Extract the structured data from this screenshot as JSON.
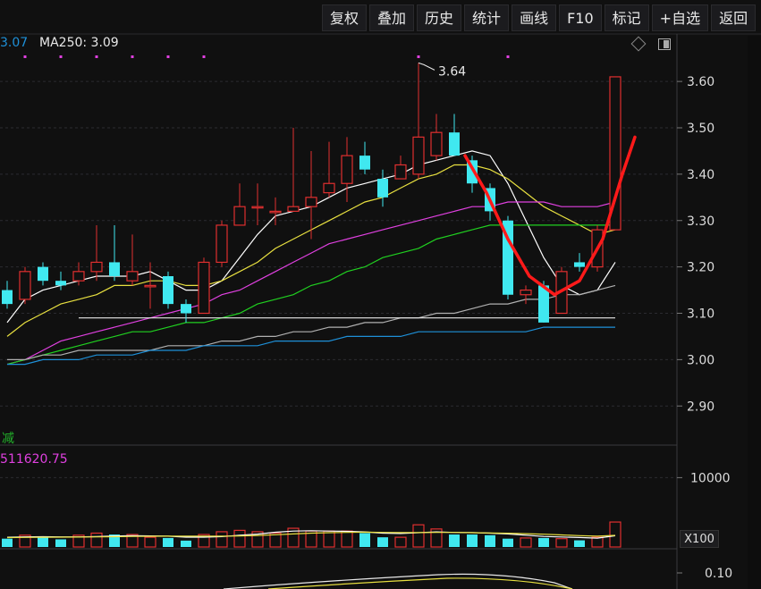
{
  "toolbar": {
    "items": [
      "复权",
      "叠加",
      "历史",
      "统计",
      "画线",
      "F10",
      "标记",
      "+自选",
      "返回"
    ]
  },
  "indicators": {
    "ma_prev_value": "3.07",
    "ma250_label": "MA250: 3.09"
  },
  "volume_panel": {
    "title": "减",
    "value": "511620.75",
    "multiplier": "X100"
  },
  "colors": {
    "up": "#e03030",
    "down": "#40e8f0",
    "ma5": "#ffffff",
    "ma10": "#e8e040",
    "ma20": "#e040e0",
    "ma30": "#20d020",
    "ma60": "#b0b0b0",
    "ma250": "#1e90d8",
    "annotation": "#ff1a1a"
  },
  "chart_data": [
    {
      "type": "candlestick",
      "y_ticks": [
        "3.60",
        "3.50",
        "3.40",
        "3.30",
        "3.20",
        "3.10",
        "3.00",
        "2.90"
      ],
      "ylim": [
        2.86,
        3.66
      ],
      "grid": true,
      "high_annotation": "3.64",
      "candles": [
        {
          "o": 3.15,
          "h": 3.17,
          "l": 3.11,
          "c": 3.12
        },
        {
          "o": 3.13,
          "h": 3.2,
          "l": 3.12,
          "c": 3.19
        },
        {
          "o": 3.2,
          "h": 3.21,
          "l": 3.16,
          "c": 3.17
        },
        {
          "o": 3.17,
          "h": 3.19,
          "l": 3.15,
          "c": 3.16
        },
        {
          "o": 3.17,
          "h": 3.21,
          "l": 3.16,
          "c": 3.19
        },
        {
          "o": 3.19,
          "h": 3.29,
          "l": 3.17,
          "c": 3.21
        },
        {
          "o": 3.21,
          "h": 3.29,
          "l": 3.17,
          "c": 3.18
        },
        {
          "o": 3.17,
          "h": 3.27,
          "l": 3.16,
          "c": 3.19
        },
        {
          "o": 3.16,
          "h": 3.21,
          "l": 3.11,
          "c": 3.16
        },
        {
          "o": 3.18,
          "h": 3.19,
          "l": 3.11,
          "c": 3.12
        },
        {
          "o": 3.12,
          "h": 3.13,
          "l": 3.08,
          "c": 3.1
        },
        {
          "o": 3.1,
          "h": 3.22,
          "l": 3.1,
          "c": 3.21
        },
        {
          "o": 3.21,
          "h": 3.3,
          "l": 3.2,
          "c": 3.29
        },
        {
          "o": 3.29,
          "h": 3.38,
          "l": 3.29,
          "c": 3.33
        },
        {
          "o": 3.33,
          "h": 3.38,
          "l": 3.29,
          "c": 3.33
        },
        {
          "o": 3.32,
          "h": 3.35,
          "l": 3.29,
          "c": 3.32
        },
        {
          "o": 3.32,
          "h": 3.5,
          "l": 3.32,
          "c": 3.33
        },
        {
          "o": 3.33,
          "h": 3.45,
          "l": 3.26,
          "c": 3.35
        },
        {
          "o": 3.36,
          "h": 3.47,
          "l": 3.35,
          "c": 3.38
        },
        {
          "o": 3.38,
          "h": 3.48,
          "l": 3.34,
          "c": 3.44
        },
        {
          "o": 3.44,
          "h": 3.47,
          "l": 3.4,
          "c": 3.41
        },
        {
          "o": 3.39,
          "h": 3.41,
          "l": 3.33,
          "c": 3.35
        },
        {
          "o": 3.39,
          "h": 3.44,
          "l": 3.39,
          "c": 3.42
        },
        {
          "o": 3.4,
          "h": 3.64,
          "l": 3.39,
          "c": 3.48
        },
        {
          "o": 3.44,
          "h": 3.53,
          "l": 3.43,
          "c": 3.49
        },
        {
          "o": 3.49,
          "h": 3.53,
          "l": 3.44,
          "c": 3.44
        },
        {
          "o": 3.43,
          "h": 3.44,
          "l": 3.36,
          "c": 3.38
        },
        {
          "o": 3.37,
          "h": 3.38,
          "l": 3.3,
          "c": 3.32
        },
        {
          "o": 3.3,
          "h": 3.31,
          "l": 3.13,
          "c": 3.14
        },
        {
          "o": 3.14,
          "h": 3.16,
          "l": 3.12,
          "c": 3.15
        },
        {
          "o": 3.16,
          "h": 3.17,
          "l": 3.08,
          "c": 3.08
        },
        {
          "o": 3.1,
          "h": 3.2,
          "l": 3.1,
          "c": 3.19
        },
        {
          "o": 3.21,
          "h": 3.23,
          "l": 3.19,
          "c": 3.2
        },
        {
          "o": 3.2,
          "h": 3.29,
          "l": 3.19,
          "c": 3.28
        },
        {
          "o": 3.28,
          "h": 3.61,
          "l": 3.28,
          "c": 3.61
        }
      ],
      "moving_averages": [
        {
          "key": "ma5",
          "values": [
            3.08,
            3.13,
            3.15,
            3.16,
            3.17,
            3.18,
            3.18,
            3.18,
            3.19,
            3.17,
            3.15,
            3.15,
            3.17,
            3.22,
            3.27,
            3.31,
            3.32,
            3.33,
            3.35,
            3.37,
            3.38,
            3.39,
            3.4,
            3.42,
            3.43,
            3.44,
            3.45,
            3.44,
            3.38,
            3.3,
            3.22,
            3.16,
            3.14,
            3.15,
            3.21
          ]
        },
        {
          "key": "ma10",
          "values": [
            3.05,
            3.08,
            3.1,
            3.12,
            3.13,
            3.14,
            3.16,
            3.16,
            3.17,
            3.17,
            3.16,
            3.16,
            3.17,
            3.19,
            3.21,
            3.24,
            3.26,
            3.28,
            3.3,
            3.32,
            3.34,
            3.35,
            3.37,
            3.39,
            3.4,
            3.42,
            3.42,
            3.41,
            3.39,
            3.36,
            3.33,
            3.31,
            3.29,
            3.27,
            3.28
          ]
        },
        {
          "key": "ma20",
          "values": [
            2.99,
            3.0,
            3.02,
            3.04,
            3.05,
            3.06,
            3.07,
            3.08,
            3.09,
            3.1,
            3.11,
            3.12,
            3.14,
            3.15,
            3.17,
            3.19,
            3.21,
            3.23,
            3.25,
            3.26,
            3.27,
            3.28,
            3.29,
            3.3,
            3.31,
            3.32,
            3.33,
            3.33,
            3.34,
            3.34,
            3.34,
            3.33,
            3.33,
            3.33,
            3.34
          ]
        },
        {
          "key": "ma30",
          "values": [
            2.99,
            3.0,
            3.01,
            3.02,
            3.03,
            3.04,
            3.05,
            3.06,
            3.06,
            3.07,
            3.08,
            3.08,
            3.09,
            3.1,
            3.12,
            3.13,
            3.14,
            3.16,
            3.17,
            3.19,
            3.2,
            3.22,
            3.23,
            3.24,
            3.26,
            3.27,
            3.28,
            3.29,
            3.29,
            3.29,
            3.29,
            3.29,
            3.29,
            3.29,
            3.29
          ]
        },
        {
          "key": "ma60",
          "values": [
            3.0,
            3.0,
            3.01,
            3.01,
            3.02,
            3.02,
            3.02,
            3.02,
            3.02,
            3.03,
            3.03,
            3.03,
            3.04,
            3.04,
            3.05,
            3.05,
            3.06,
            3.06,
            3.07,
            3.07,
            3.08,
            3.08,
            3.09,
            3.09,
            3.1,
            3.1,
            3.11,
            3.12,
            3.12,
            3.13,
            3.13,
            3.14,
            3.14,
            3.15,
            3.16
          ]
        },
        {
          "key": "ma250",
          "values": [
            2.99,
            2.99,
            3.0,
            3.0,
            3.0,
            3.01,
            3.01,
            3.01,
            3.02,
            3.02,
            3.02,
            3.03,
            3.03,
            3.03,
            3.03,
            3.04,
            3.04,
            3.04,
            3.04,
            3.05,
            3.05,
            3.05,
            3.05,
            3.06,
            3.06,
            3.06,
            3.06,
            3.06,
            3.06,
            3.06,
            3.07,
            3.07,
            3.07,
            3.07,
            3.07
          ]
        }
      ],
      "reference_line": {
        "value": 3.09,
        "from_index": 4,
        "to_index": 34
      },
      "markers_top": [
        1,
        3,
        5,
        7,
        9,
        11,
        23,
        28
      ],
      "u_curve": [
        {
          "i": 25.6,
          "v": 3.44
        },
        {
          "i": 26.8,
          "v": 3.36
        },
        {
          "i": 28.0,
          "v": 3.26
        },
        {
          "i": 29.2,
          "v": 3.18
        },
        {
          "i": 30.6,
          "v": 3.14
        },
        {
          "i": 32.0,
          "v": 3.17
        },
        {
          "i": 33.3,
          "v": 3.26
        },
        {
          "i": 34.4,
          "v": 3.4
        },
        {
          "i": 35.1,
          "v": 3.48
        }
      ]
    },
    {
      "type": "bar",
      "y_ticks": [
        "10000"
      ],
      "ylim": [
        0,
        12500
      ],
      "volumes": [
        1200,
        1700,
        1500,
        1100,
        1700,
        2000,
        1800,
        1800,
        1400,
        1300,
        920,
        1800,
        2200,
        2400,
        2200,
        2000,
        2700,
        2300,
        2300,
        2300,
        2000,
        1400,
        1400,
        3200,
        2600,
        1800,
        1800,
        1700,
        1200,
        1300,
        1300,
        1200,
        960,
        1400,
        3600
      ],
      "ma_lines": [
        {
          "key": "ma5",
          "values": [
            1400,
            1450,
            1480,
            1460,
            1450,
            1500,
            1580,
            1640,
            1600,
            1560,
            1420,
            1420,
            1500,
            1700,
            1860,
            2120,
            2300,
            2340,
            2300,
            2260,
            2180,
            2000,
            1940,
            2060,
            2180,
            2100,
            2080,
            2000,
            1880,
            1700,
            1520,
            1440,
            1360,
            1280,
            1620
          ]
        },
        {
          "key": "ma10",
          "values": [
            1350,
            1380,
            1400,
            1420,
            1430,
            1450,
            1480,
            1520,
            1540,
            1560,
            1560,
            1560,
            1560,
            1600,
            1660,
            1760,
            1880,
            2000,
            2060,
            2100,
            2140,
            2100,
            2080,
            2080,
            2100,
            2100,
            2060,
            2020,
            1980,
            1920,
            1840,
            1740,
            1640,
            1560,
            1680
          ]
        }
      ]
    },
    {
      "type": "line",
      "y_ticks": [
        "0.10"
      ]
    }
  ]
}
